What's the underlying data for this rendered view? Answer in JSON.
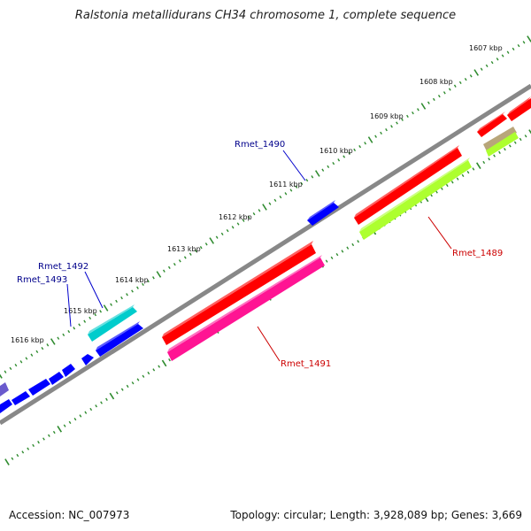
{
  "title": "Ralstonia metallidurans CH34 chromosome 1, complete sequence",
  "accession": "Accession: NC_007973",
  "summary": "Topology: circular; Length: 3,928,089 bp; Genes: 3,669",
  "ticks": [
    "1607 kbp",
    "1608 kbp",
    "1609 kbp",
    "1610 kbp",
    "1611 kbp",
    "1612 kbp",
    "1613 kbp",
    "1614 kbp",
    "1615 kbp",
    "1616 kbp"
  ],
  "gene_labels": {
    "rmet_1489": "Rmet_1489",
    "rmet_1490": "Rmet_1490",
    "rmet_1491": "Rmet_1491",
    "rmet_1492": "Rmet_1492",
    "rmet_1493": "Rmet_1493"
  },
  "colors": {
    "backbone": "#808080",
    "forward_label": "#00008b",
    "reverse_label": "#cc0000",
    "tick": "#2e8b2e",
    "red": "#ff0000",
    "blue": "#0000ff",
    "lime": "#adff2f",
    "pink": "#ff1493",
    "cyan": "#00cccc",
    "tan": "#b8a67a",
    "slate": "#6a5acd"
  }
}
